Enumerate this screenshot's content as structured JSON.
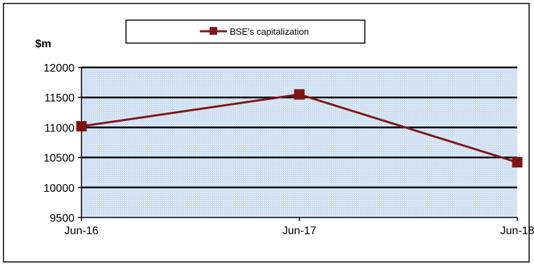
{
  "chart_data": {
    "type": "line",
    "categories": [
      "Jun-16",
      "Jun-17",
      "Jun-18"
    ],
    "series": [
      {
        "name": "BSE's capitalization",
        "values": [
          11020,
          11550,
          10420
        ],
        "color": "#7f1416"
      }
    ],
    "ylabel": "$m",
    "ylim": [
      9500,
      12000
    ],
    "yticks": [
      "9500",
      "10000",
      "10500",
      "11000",
      "11500",
      "12000"
    ],
    "grid": true,
    "legend_position": "top-center",
    "plot_background": "#c9dcf0",
    "plot_pattern_color": "#ffffff"
  }
}
